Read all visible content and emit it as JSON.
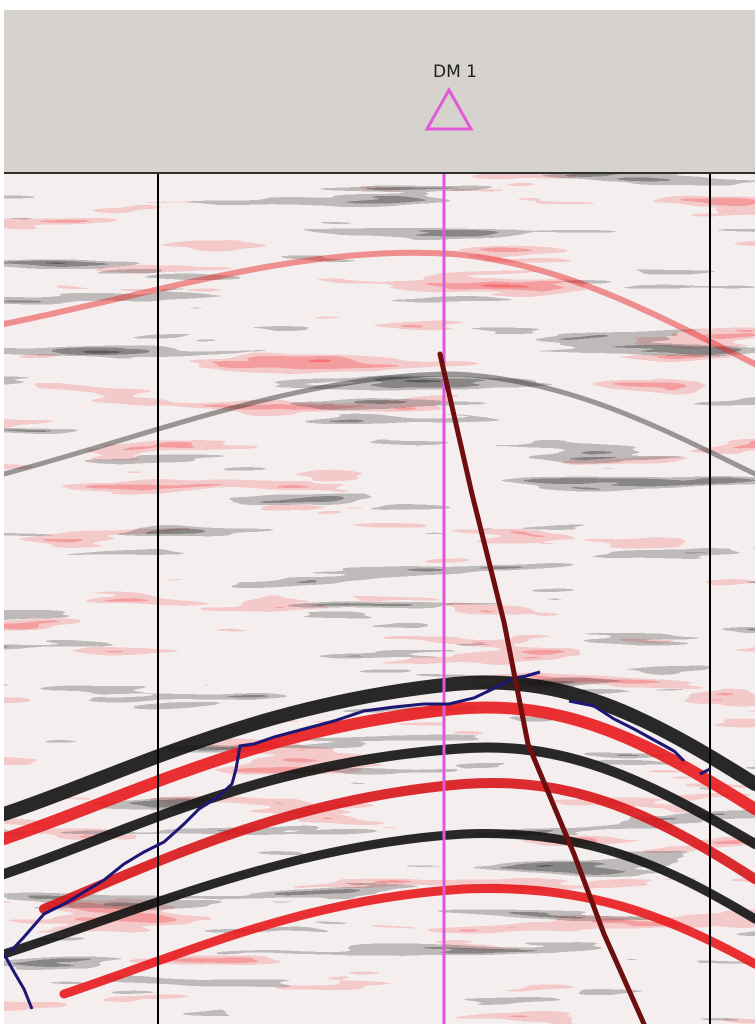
{
  "well": {
    "name": "DM 1",
    "symbol_icon": "triangle-icon",
    "color": "#e05ad8"
  },
  "colors": {
    "header_bg": "#d6d3ce",
    "positive_amplitude": "#e8191c",
    "negative_amplitude": "#0c0c0c",
    "horizon": "#1c1675",
    "fault": "#6e0e0e",
    "well_path": "#dd5ad6",
    "panel_divider": "#000000"
  }
}
